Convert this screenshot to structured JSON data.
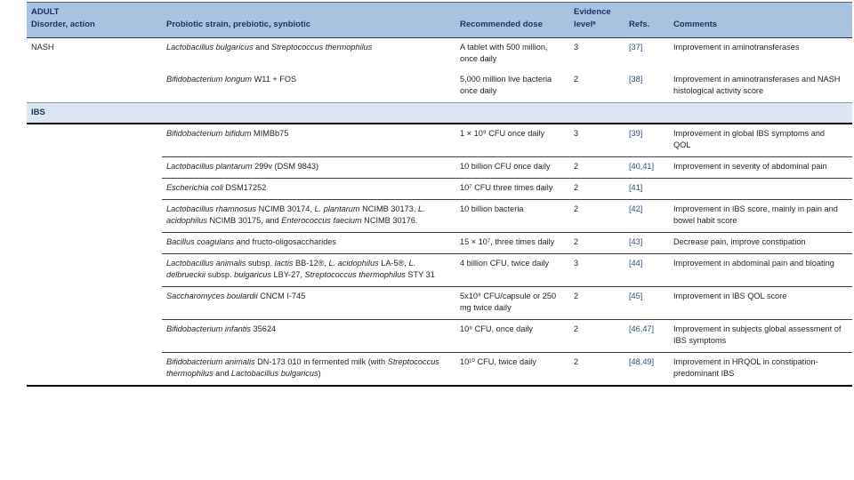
{
  "colors": {
    "header_band": "#a8c2e0",
    "section_band": "#dce6f2",
    "header_text": "#17365d",
    "body_text": "#262626",
    "reference_link": "#2e4a87",
    "thick_rule": "#000000"
  },
  "table": {
    "group_title": "ADULT",
    "columns": {
      "disorder": "Disorder, action",
      "strain": "Probiotic strain, prebiotic, synbiotic",
      "dose": "Recommended dose",
      "evidence": "Evidence levelᵃ",
      "refs": "Refs.",
      "comments": "Comments"
    },
    "sections": [
      {
        "disorder": "NASH",
        "band": false,
        "rows": [
          {
            "strain": [
              {
                "t": "Lactobacillus bulgaricus",
                "i": 1
              },
              {
                "t": " and ",
                "i": 0
              },
              {
                "t": "Streptococcus thermophilus",
                "i": 1
              }
            ],
            "dose": "A tablet with 500 million, once daily",
            "evidence": "3",
            "refs": "[37]",
            "comments": "Improvement in aminotransferases"
          },
          {
            "strain": [
              {
                "t": "Bifidobacterium longum",
                "i": 1
              },
              {
                "t": " W11 + FOS",
                "i": 0
              }
            ],
            "dose": "5,000 million live bacteria once daily",
            "evidence": "2",
            "refs": "[38]",
            "comments": "Improvement in aminotransferases and NASH histological activity score"
          }
        ]
      },
      {
        "disorder": "IBS",
        "band": true,
        "rows": [
          {
            "strain": [
              {
                "t": "Bifidobacterium bifidum",
                "i": 1
              },
              {
                "t": " MIMBb75",
                "i": 0
              }
            ],
            "dose": "1 × 10⁹ CFU once daily",
            "evidence": "3",
            "refs": "[39]",
            "comments": "Improvement in global IBS symptoms and QOL"
          },
          {
            "strain": [
              {
                "t": "Lactobacillus plantarum",
                "i": 1
              },
              {
                "t": " 299v (DSM 9843)",
                "i": 0
              }
            ],
            "dose": "10 billion CFU once daily",
            "evidence": "2",
            "refs": "[40,41]",
            "comments": "Improvement in severity of abdominal pain"
          },
          {
            "strain": [
              {
                "t": "Escherichia coli",
                "i": 1
              },
              {
                "t": " DSM17252",
                "i": 0
              }
            ],
            "dose": "10⁷ CFU three times daily",
            "evidence": "2",
            "refs": "[41]",
            "comments": ""
          },
          {
            "strain": [
              {
                "t": "Lactobacillus rhamnosus",
                "i": 1
              },
              {
                "t": " NCIMB 30174, ",
                "i": 0
              },
              {
                "t": "L. plantarum",
                "i": 1
              },
              {
                "t": " NCIMB 30173, ",
                "i": 0
              },
              {
                "t": "L. acidophilus",
                "i": 1
              },
              {
                "t": " NCIMB 30175, and ",
                "i": 0
              },
              {
                "t": "Enterococcus faecium",
                "i": 1
              },
              {
                "t": " NCIMB 30176.",
                "i": 0
              }
            ],
            "dose": "10 billion bacteria",
            "evidence": "2",
            "refs": "[42]",
            "comments": "Improvement in IBS score, mainly in pain and bowel habit score"
          },
          {
            "strain": [
              {
                "t": "Bacillus coagulans",
                "i": 1
              },
              {
                "t": " and fructo-oligosaccharides",
                "i": 0
              }
            ],
            "dose": "15 × 10⁷, three times daily",
            "evidence": "2",
            "refs": "[43]",
            "comments": "Decrease pain, improve constipation"
          },
          {
            "strain": [
              {
                "t": "Lactobacillus animalis",
                "i": 1
              },
              {
                "t": " subsp. ",
                "i": 0
              },
              {
                "t": "lactis",
                "i": 1
              },
              {
                "t": " BB-12®, ",
                "i": 0
              },
              {
                "t": "L. acidophilus",
                "i": 1
              },
              {
                "t": " LA-5®, ",
                "i": 0
              },
              {
                "t": "L. delbrueckii",
                "i": 1
              },
              {
                "t": " subsp. ",
                "i": 0
              },
              {
                "t": "bulgaricus",
                "i": 1
              },
              {
                "t": " LBY-27, ",
                "i": 0
              },
              {
                "t": "Streptococcus thermophilus",
                "i": 1
              },
              {
                "t": " STY 31",
                "i": 0
              }
            ],
            "dose": "4 billion CFU, twice daily",
            "evidence": "3",
            "refs": "[44]",
            "comments": "Improvement in abdominal pain and bloating"
          },
          {
            "strain": [
              {
                "t": "Saccharomyces boulardii",
                "i": 1
              },
              {
                "t": " CNCM I-745",
                "i": 0
              }
            ],
            "dose": "5x10⁹ CFU/capsule or 250 mg twice daily",
            "evidence": "2",
            "refs": "[45]",
            "comments": "Improvement in IBS QOL score"
          },
          {
            "strain": [
              {
                "t": "Bifidobacterium infantis",
                "i": 1
              },
              {
                "t": " 35624",
                "i": 0
              }
            ],
            "dose": "10⁸ CFU, once daily",
            "evidence": "2",
            "refs": "[46,47]",
            "comments": "Improvement in subjects global assessment of IBS symptoms"
          },
          {
            "strain": [
              {
                "t": "Bifidobacterium animalis",
                "i": 1
              },
              {
                "t": " DN-173 010 in fermented milk (with ",
                "i": 0
              },
              {
                "t": "Streptococcus thermophilus",
                "i": 1
              },
              {
                "t": " and ",
                "i": 0
              },
              {
                "t": "Lactobacillus bulgaricus",
                "i": 1
              },
              {
                "t": ")",
                "i": 0
              }
            ],
            "dose": "10¹⁰ CFU, twice daily",
            "evidence": "2",
            "refs": "[48,49]",
            "comments": "Improvement in HRQOL in constipation-predominant IBS"
          }
        ]
      }
    ]
  }
}
